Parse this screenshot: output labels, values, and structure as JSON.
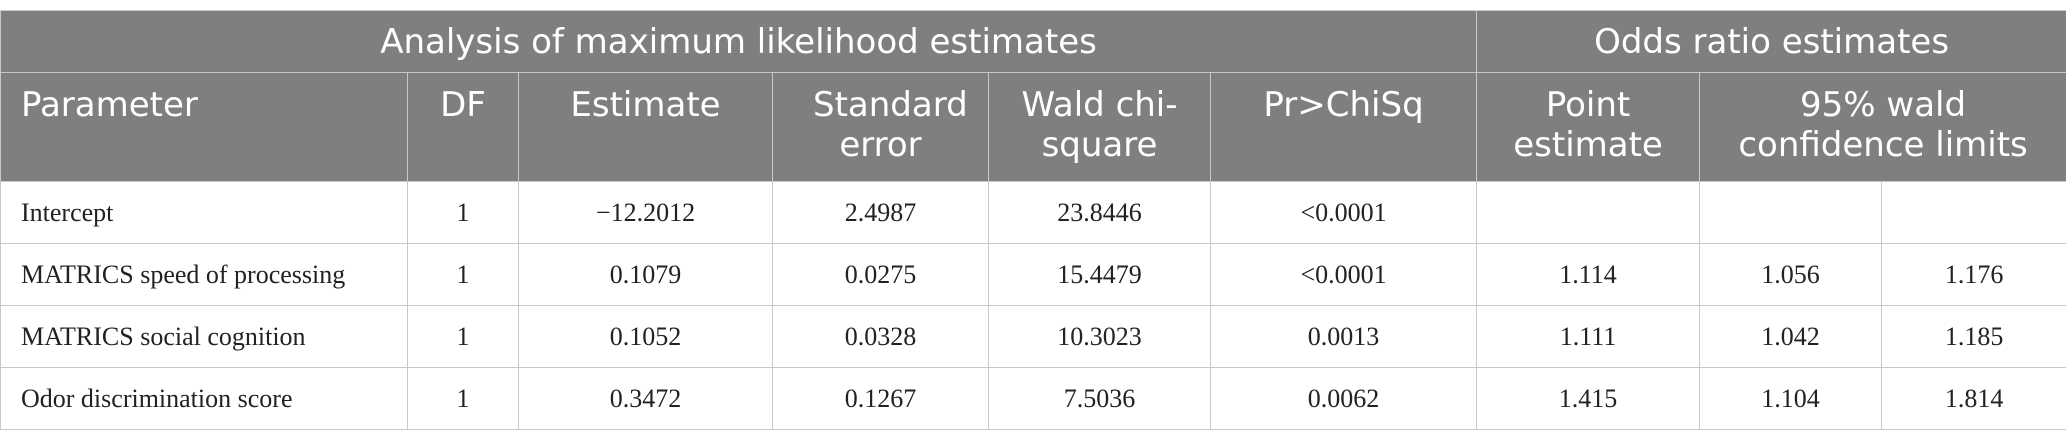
{
  "header": {
    "group1": "Analysis of maximum likelihood estimates",
    "group2": "Odds ratio estimates",
    "columns": [
      "Parameter",
      "DF",
      "Estimate",
      "Standard error",
      "Wald chi-square",
      "Pr>ChiSq",
      "Point estimate",
      "95% wald confidence limits"
    ]
  },
  "table": {
    "rows": [
      [
        "Intercept",
        "1",
        "−12.2012",
        "2.4987",
        "23.8446",
        "<0.0001"
      ],
      [
        "MATRICS speed of processing",
        "1",
        "0.1079",
        "0.0275",
        "15.4479",
        "<0.0001",
        "1.114",
        "1.056",
        "1.176"
      ],
      [
        "MATRICS social cognition",
        "1",
        "0.1052",
        "0.0328",
        "10.3023",
        "0.0013",
        "1.111",
        "1.042",
        "1.185"
      ],
      [
        "Odor discrimination score",
        "1",
        "0.3472",
        "0.1267",
        "7.5036",
        "0.0062",
        "1.415",
        "1.104",
        "1.814"
      ]
    ]
  }
}
